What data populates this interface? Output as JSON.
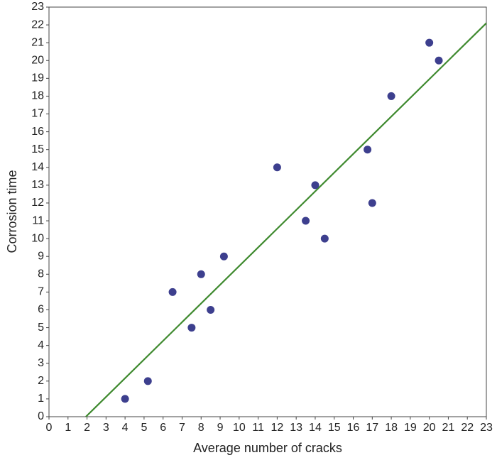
{
  "chart_data": {
    "type": "scatter",
    "x_label": "Average number of cracks",
    "y_label": "Corrosion time",
    "x": [
      4.0,
      5.2,
      6.5,
      7.5,
      8.0,
      8.5,
      9.2,
      12.0,
      13.5,
      14.0,
      14.5,
      16.75,
      17.0,
      18.0,
      20.0,
      20.5
    ],
    "values": [
      1,
      2,
      7,
      5,
      8,
      6,
      9,
      14,
      11,
      13,
      10,
      15,
      12,
      18,
      21,
      20
    ],
    "color": "#3d3f8e",
    "fit_line": {
      "x": [
        1.94,
        23
      ],
      "y": [
        0,
        22.1
      ],
      "color": "#3f8a2f"
    },
    "xlim": [
      0,
      23
    ],
    "ylim": [
      0,
      23
    ],
    "xticks": [
      0,
      1,
      2,
      3,
      4,
      5,
      6,
      7,
      8,
      9,
      10,
      11,
      12,
      13,
      14,
      15,
      16,
      17,
      18,
      19,
      20,
      21,
      22,
      23
    ],
    "yticks": [
      0,
      1,
      2,
      3,
      4,
      5,
      6,
      7,
      8,
      9,
      10,
      11,
      12,
      13,
      14,
      15,
      16,
      17,
      18,
      19,
      20,
      21,
      22,
      23
    ]
  }
}
